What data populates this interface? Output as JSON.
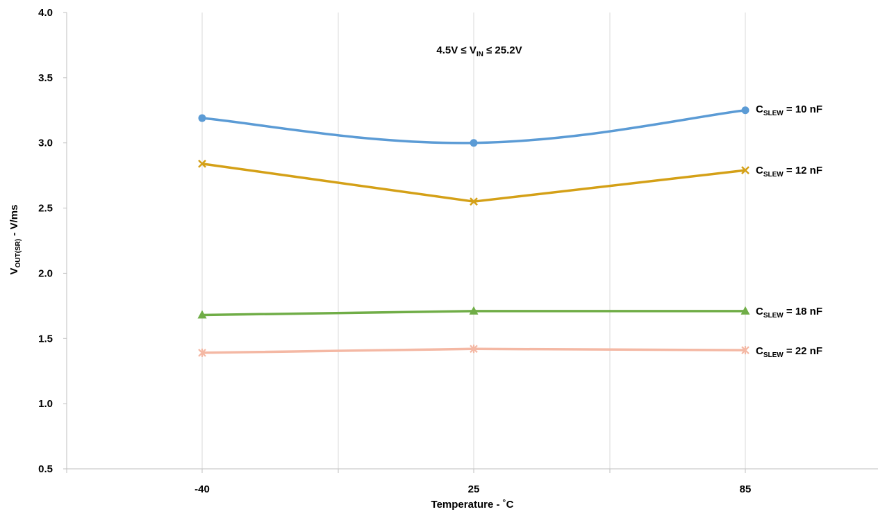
{
  "chart_data": {
    "type": "line",
    "title": {
      "prefix": "4.5V ≤ V",
      "sub": "IN",
      "suffix": " ≤ 25.2V"
    },
    "xlabel": "Temperature - ˚C",
    "ylabel": {
      "prefix": "V",
      "sub": "OUT(SR)",
      "suffix": " - V/ms"
    },
    "categories": [
      "-40",
      "25",
      "85"
    ],
    "ylim": [
      0.5,
      4.0
    ],
    "yticks": [
      "0.5",
      "1.0",
      "1.5",
      "2.0",
      "2.5",
      "3.0",
      "3.5",
      "4.0"
    ],
    "grid": {
      "vertical": true,
      "horizontal": false
    },
    "series": [
      {
        "label_prefix": "C",
        "label_sub": "SLEW",
        "label_suffix": " = 10 nF",
        "values": [
          3.19,
          3.0,
          3.25
        ],
        "color": "#5B9BD5",
        "marker": "circle",
        "smooth": true
      },
      {
        "label_prefix": "C",
        "label_sub": "SLEW",
        "label_suffix": " = 12 nF",
        "values": [
          2.84,
          2.55,
          2.79
        ],
        "color": "#D4A017",
        "marker": "x",
        "smooth": false
      },
      {
        "label_prefix": "C",
        "label_sub": "SLEW",
        "label_suffix": " = 18 nF",
        "values": [
          1.68,
          1.71,
          1.71
        ],
        "color": "#70AD47",
        "marker": "triangle",
        "smooth": false
      },
      {
        "label_prefix": "C",
        "label_sub": "SLEW",
        "label_suffix": " = 22 nF",
        "values": [
          1.39,
          1.42,
          1.41
        ],
        "color": "#F4B8A4",
        "marker": "star",
        "smooth": false
      }
    ]
  }
}
